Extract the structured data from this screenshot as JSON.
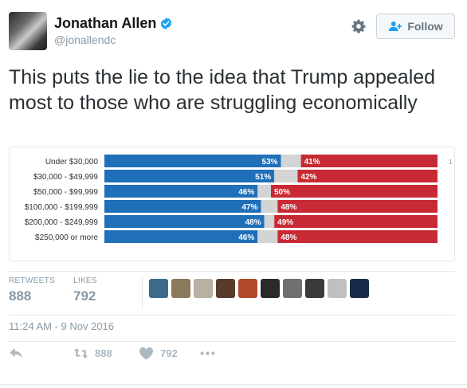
{
  "user": {
    "display_name": "Jonathan Allen",
    "handle": "@jonallendc",
    "verified_icon": "verified-badge-icon"
  },
  "header": {
    "follow_label": "Follow",
    "follow_icon": "add-user-icon",
    "settings_icon": "gear-icon"
  },
  "tweet": {
    "text": "This puts the lie to the idea that Trump appealed most to those who are struggling economically"
  },
  "colors": {
    "clinton_blue": "#1f6fb9",
    "trump_red": "#c72a34",
    "other_gray": "#d4d4d4",
    "accent": "#1da1f2",
    "muted": "#8899a6"
  },
  "chart_data": {
    "type": "bar",
    "orientation": "horizontal",
    "stacked": true,
    "categories": [
      "Under $30,000",
      "$30,000 - $49,999",
      "$50,000 - $99,999",
      "$100,000 - $199,999",
      "$200,000 - $249,999",
      "$250,000 or more"
    ],
    "series": [
      {
        "values": [
          53,
          51,
          46,
          47,
          48,
          46
        ],
        "value_labels": [
          "53%",
          "51%",
          "46%",
          "47%",
          "48%",
          "46%"
        ]
      },
      {
        "values": [
          6,
          7,
          4,
          5,
          3,
          6
        ],
        "value_labels": []
      },
      {
        "values": [
          41,
          42,
          50,
          48,
          49,
          48
        ],
        "value_labels": [
          "41%",
          "42%",
          "50%",
          "48%",
          "49%",
          "48%"
        ]
      }
    ],
    "xlim": [
      0,
      100
    ],
    "grid": false,
    "legend": "none",
    "edge_mark": "1"
  },
  "stats": {
    "retweets_label": "RETWEETS",
    "retweets_value": "888",
    "likes_label": "LIKES",
    "likes_value": "792"
  },
  "likers": [
    {
      "name": "liker-avatar-1",
      "color": "#3c6b8a"
    },
    {
      "name": "liker-avatar-2",
      "color": "#8a7a5a"
    },
    {
      "name": "liker-avatar-3",
      "color": "#b8b0a0"
    },
    {
      "name": "liker-avatar-4",
      "color": "#5a3a2a"
    },
    {
      "name": "liker-avatar-5",
      "color": "#b04a2a"
    },
    {
      "name": "liker-avatar-6",
      "color": "#2a2a2a"
    },
    {
      "name": "liker-avatar-7",
      "color": "#707070"
    },
    {
      "name": "liker-avatar-8",
      "color": "#3a3a3a"
    },
    {
      "name": "liker-avatar-9",
      "color": "#c0c0c0"
    },
    {
      "name": "liker-avatar-10",
      "color": "#1a2a4a"
    }
  ],
  "timestamp": "11:24 AM - 9 Nov 2016",
  "actions": {
    "reply_icon": "reply-icon",
    "retweet_icon": "retweet-icon",
    "retweet_count": "888",
    "like_icon": "heart-icon",
    "like_count": "792",
    "more_icon": "more-icon"
  }
}
